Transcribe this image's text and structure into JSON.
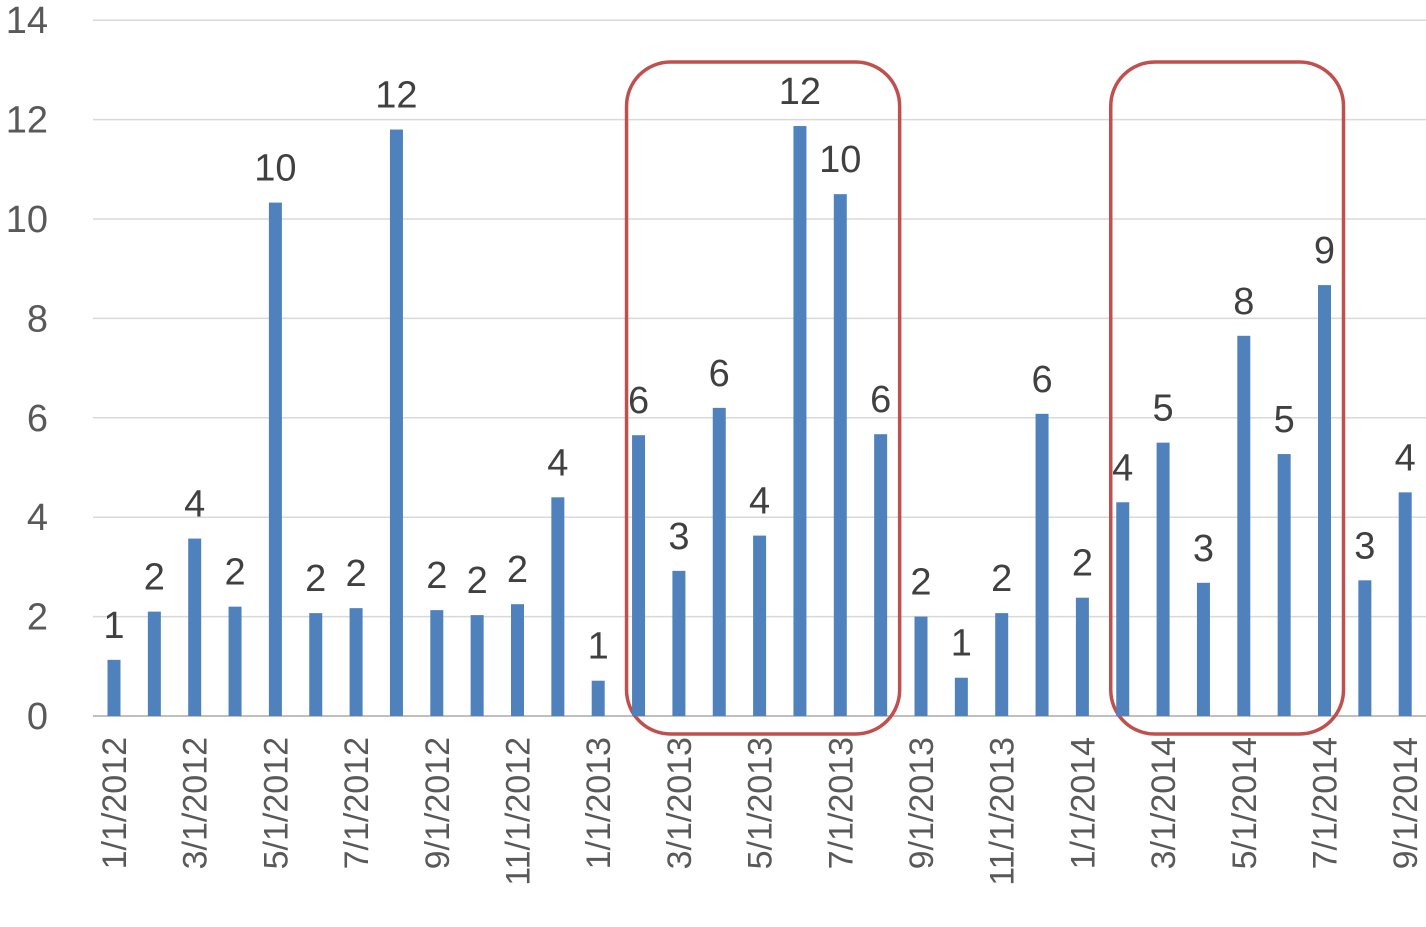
{
  "chart_data": {
    "type": "bar",
    "title": "",
    "xlabel": "",
    "ylabel": "",
    "ylim": [
      0,
      14
    ],
    "yticks": [
      0,
      2,
      4,
      6,
      8,
      10,
      12,
      14
    ],
    "grid": true,
    "legend": "none",
    "categories": [
      "1/1/2012",
      "2/1/2012",
      "3/1/2012",
      "4/1/2012",
      "5/1/2012",
      "6/1/2012",
      "7/1/2012",
      "8/1/2012",
      "9/1/2012",
      "10/1/2012",
      "11/1/2012",
      "12/1/2012",
      "1/1/2013",
      "2/1/2013",
      "3/1/2013",
      "4/1/2013",
      "5/1/2013",
      "6/1/2013",
      "7/1/2013",
      "8/1/2013",
      "9/1/2013",
      "10/1/2013",
      "11/1/2013",
      "12/1/2013",
      "1/1/2014",
      "2/1/2014",
      "3/1/2014",
      "4/1/2014",
      "5/1/2014",
      "6/1/2014",
      "7/1/2014",
      "8/1/2014",
      "9/1/2014"
    ],
    "tick_labels": [
      "1/1/2012",
      "",
      "3/1/2012",
      "",
      "5/1/2012",
      "",
      "7/1/2012",
      "",
      "9/1/2012",
      "",
      "11/1/2012",
      "",
      "1/1/2013",
      "",
      "3/1/2013",
      "",
      "5/1/2013",
      "",
      "7/1/2013",
      "",
      "9/1/2013",
      "",
      "11/1/2013",
      "",
      "1/1/2014",
      "",
      "3/1/2014",
      "",
      "5/1/2014",
      "",
      "7/1/2014",
      "",
      "9/1/2014"
    ],
    "values": [
      1.13,
      2.1,
      3.57,
      2.2,
      10.33,
      2.07,
      2.17,
      11.8,
      2.13,
      2.03,
      2.25,
      4.4,
      0.71,
      5.65,
      2.92,
      6.2,
      3.63,
      11.87,
      10.5,
      5.67,
      2.0,
      0.77,
      2.07,
      6.08,
      2.38,
      4.3,
      5.5,
      2.68,
      7.65,
      5.27,
      8.67,
      2.73,
      4.5
    ],
    "data_labels": [
      "1",
      "2",
      "4",
      "2",
      "10",
      "2",
      "2",
      "12",
      "2",
      "2",
      "2",
      "4",
      "1",
      "6",
      "3",
      "6",
      "4",
      "12",
      "10",
      "6",
      "2",
      "1",
      "2",
      "6",
      "2",
      "4",
      "5",
      "3",
      "8",
      "5",
      "9",
      "3",
      "4"
    ],
    "highlight_ranges": [
      [
        13,
        19
      ],
      [
        25,
        30
      ]
    ],
    "colors": {
      "bar": "#4f81bd",
      "highlight": "#c0504d",
      "grid": "#d9d9d9",
      "axis": "#bfbfbf"
    }
  }
}
